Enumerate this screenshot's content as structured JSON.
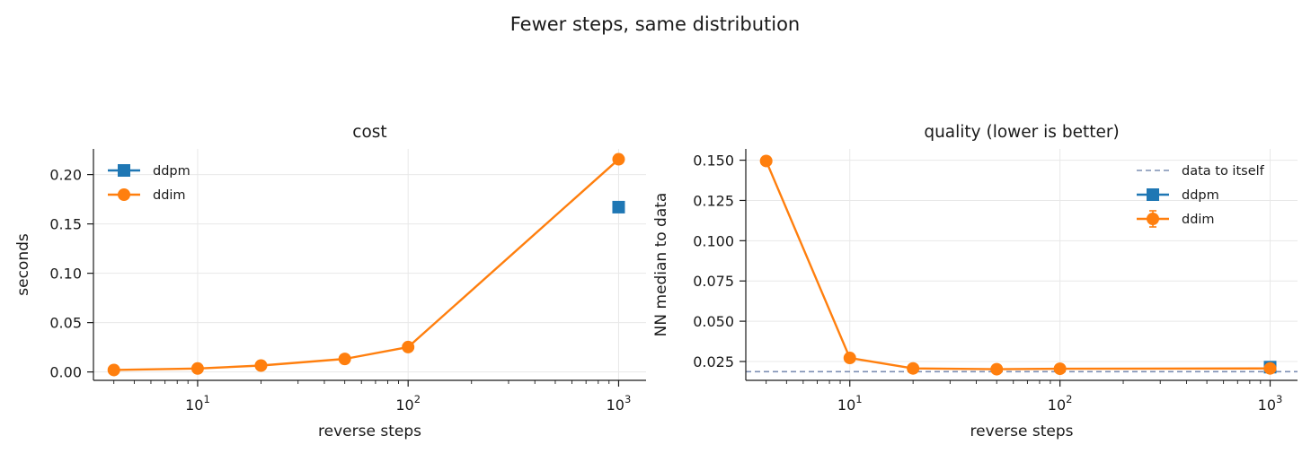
{
  "suptitle": "Fewer steps, same distribution",
  "colors": {
    "ddpm": "#1f77b4",
    "ddim": "#ff7f0e",
    "reference": "#7d8fb3"
  },
  "chart_data": [
    {
      "type": "line",
      "title": "cost",
      "xlabel": "reverse steps",
      "ylabel": "seconds",
      "xscale": "log",
      "xlim": [
        3.2,
        1350
      ],
      "ylim": [
        -0.0085,
        0.226
      ],
      "xticks": [
        10,
        100,
        1000
      ],
      "xtick_labels": [
        {
          "base": "10",
          "exp": "1"
        },
        {
          "base": "10",
          "exp": "2"
        },
        {
          "base": "10",
          "exp": "3"
        }
      ],
      "yticks": [
        0.0,
        0.05,
        0.1,
        0.15,
        0.2
      ],
      "ytick_labels": [
        "0.00",
        "0.05",
        "0.10",
        "0.15",
        "0.20"
      ],
      "grid": true,
      "legend": "top-left",
      "series": [
        {
          "name": "ddpm",
          "marker": "square",
          "color": "#1f77b4",
          "x": [
            1000
          ],
          "y": [
            0.167
          ]
        },
        {
          "name": "ddim",
          "marker": "circle",
          "color": "#ff7f0e",
          "x": [
            4,
            10,
            20,
            50,
            100,
            1000
          ],
          "y": [
            0.002,
            0.0035,
            0.0065,
            0.0132,
            0.0252,
            0.2155
          ]
        }
      ]
    },
    {
      "type": "line",
      "title": "quality (lower is better)",
      "xlabel": "reverse steps",
      "ylabel": "NN median to data",
      "xscale": "log",
      "xlim": [
        3.2,
        1350
      ],
      "ylim": [
        0.0133,
        0.157
      ],
      "xticks": [
        10,
        100,
        1000
      ],
      "xtick_labels": [
        {
          "base": "10",
          "exp": "1"
        },
        {
          "base": "10",
          "exp": "2"
        },
        {
          "base": "10",
          "exp": "3"
        }
      ],
      "yticks": [
        0.025,
        0.05,
        0.075,
        0.1,
        0.125,
        0.15
      ],
      "ytick_labels": [
        "0.025",
        "0.050",
        "0.075",
        "0.100",
        "0.125",
        "0.150"
      ],
      "grid": true,
      "legend": "top-right",
      "reference_line": {
        "name": "data to itself",
        "y": 0.0187,
        "style": "dashed",
        "color": "#7d8fb3"
      },
      "series": [
        {
          "name": "ddpm",
          "marker": "square",
          "color": "#1f77b4",
          "x": [
            1000
          ],
          "y": [
            0.0215
          ]
        },
        {
          "name": "ddim",
          "marker": "circle",
          "color": "#ff7f0e",
          "errorbars": true,
          "x": [
            4,
            10,
            20,
            50,
            100,
            1000
          ],
          "y": [
            0.1495,
            0.0272,
            0.0207,
            0.0202,
            0.0205,
            0.0207
          ]
        }
      ]
    }
  ]
}
